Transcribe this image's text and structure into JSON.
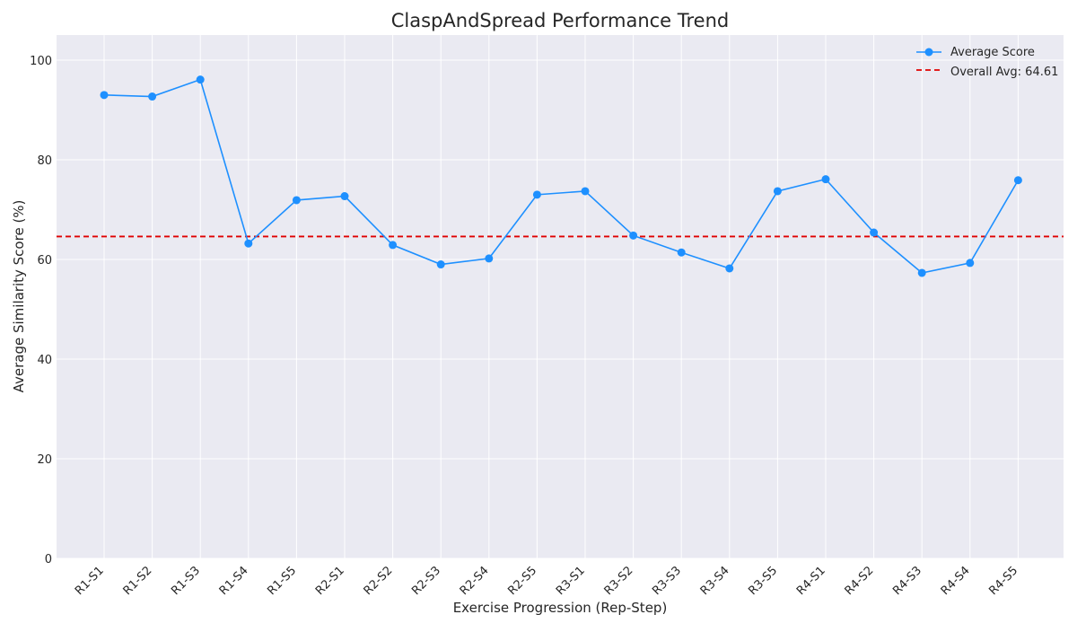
{
  "colors": {
    "plot_background": "#EAEAF2",
    "grid": "#FFFFFF",
    "series_line": "#1E90FF",
    "average_line": "#E00000"
  },
  "chart_data": {
    "type": "line",
    "title": "ClaspAndSpread Performance Trend",
    "xlabel": "Exercise Progression (Rep-Step)",
    "ylabel": "Average Similarity Score (%)",
    "ylim": [
      0,
      105
    ],
    "yticks": [
      0,
      20,
      40,
      60,
      80,
      100
    ],
    "grid": true,
    "legend_position": "top-right",
    "categories": [
      "R1-S1",
      "R1-S2",
      "R1-S3",
      "R1-S4",
      "R1-S5",
      "R2-S1",
      "R2-S2",
      "R2-S3",
      "R2-S4",
      "R2-S5",
      "R3-S1",
      "R3-S2",
      "R3-S3",
      "R3-S4",
      "R3-S5",
      "R4-S1",
      "R4-S2",
      "R4-S3",
      "R4-S4",
      "R4-S5"
    ],
    "series": [
      {
        "name": "Average Score",
        "values": [
          93.0,
          92.7,
          96.1,
          63.2,
          71.9,
          72.7,
          62.9,
          59.0,
          60.2,
          73.0,
          73.7,
          64.8,
          61.4,
          58.2,
          73.7,
          76.1,
          65.4,
          57.3,
          59.3,
          75.9
        ]
      }
    ],
    "reference_line": {
      "label": "Overall Avg: 64.61",
      "value": 64.61
    }
  }
}
